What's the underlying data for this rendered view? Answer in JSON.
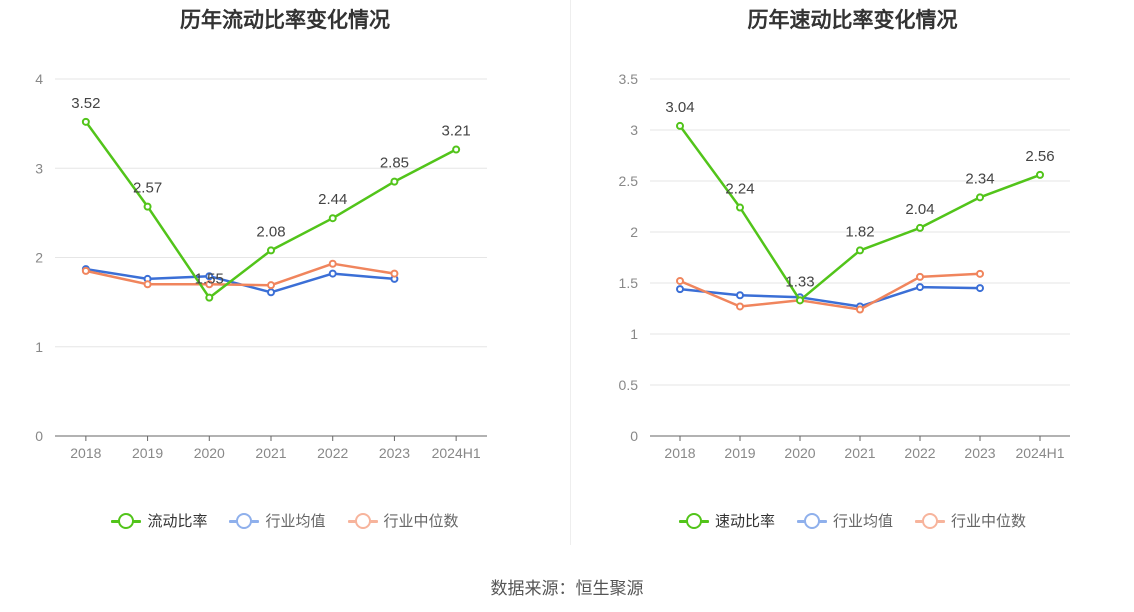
{
  "chart_data": [
    {
      "type": "line",
      "title": "历年流动比率变化情况",
      "categories": [
        "2018",
        "2019",
        "2020",
        "2021",
        "2022",
        "2023",
        "2024H1"
      ],
      "ylim": [
        0,
        4
      ],
      "yticks": [
        "0",
        "1",
        "2",
        "3",
        "4"
      ],
      "grid": true,
      "legend_position": "bottom",
      "series": [
        {
          "name": "流动比率",
          "color": "#52c41a",
          "values": [
            3.52,
            2.57,
            1.55,
            2.08,
            2.44,
            2.85,
            3.21
          ],
          "labels": [
            "3.52",
            "2.57",
            "1.55",
            "2.08",
            "2.44",
            "2.85",
            "3.21"
          ]
        },
        {
          "name": "行业均值",
          "color": "#3b6fd6",
          "values": [
            1.87,
            1.76,
            1.79,
            1.61,
            1.82,
            1.76,
            null
          ]
        },
        {
          "name": "行业中位数",
          "color": "#f0855d",
          "values": [
            1.85,
            1.7,
            1.7,
            1.69,
            1.93,
            1.82,
            null
          ]
        }
      ]
    },
    {
      "type": "line",
      "title": "历年速动比率变化情况",
      "categories": [
        "2018",
        "2019",
        "2020",
        "2021",
        "2022",
        "2023",
        "2024H1"
      ],
      "ylim": [
        0,
        3.5
      ],
      "yticks": [
        "0",
        "0.5",
        "1",
        "1.5",
        "2",
        "2.5",
        "3",
        "3.5"
      ],
      "grid": true,
      "legend_position": "bottom",
      "series": [
        {
          "name": "速动比率",
          "color": "#52c41a",
          "values": [
            3.04,
            2.24,
            1.33,
            1.82,
            2.04,
            2.34,
            2.56
          ],
          "labels": [
            "3.04",
            "2.24",
            "1.33",
            "1.82",
            "2.04",
            "2.34",
            "2.56"
          ]
        },
        {
          "name": "行业均值",
          "color": "#3b6fd6",
          "values": [
            1.44,
            1.38,
            1.36,
            1.27,
            1.46,
            1.45,
            null
          ]
        },
        {
          "name": "行业中位数",
          "color": "#f0855d",
          "values": [
            1.52,
            1.27,
            1.33,
            1.24,
            1.56,
            1.59,
            null
          ]
        }
      ]
    }
  ],
  "legend_left": [
    "流动比率",
    "行业均值",
    "行业中位数"
  ],
  "legend_right": [
    "速动比率",
    "行业均值",
    "行业中位数"
  ],
  "legend_colors": {
    "main": "#52c41a",
    "avg": "#8fb0ec",
    "median": "#f7b49c"
  },
  "source": "数据来源：恒生聚源"
}
